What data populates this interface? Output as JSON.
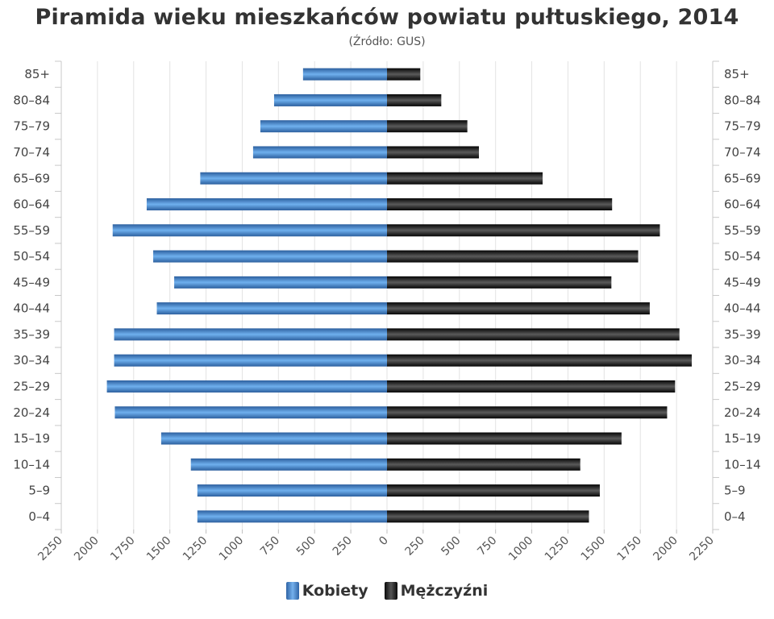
{
  "chart_data": {
    "type": "bar",
    "title": "Piramida wieku mieszkańców powiatu pułtuskiego, 2014",
    "subtitle": "(Źródło: GUS)",
    "orientation": "horizontal-population-pyramid",
    "categories": [
      "85+",
      "80-84",
      "75-79",
      "70-74",
      "65-69",
      "60-64",
      "55-59",
      "50-54",
      "45-49",
      "40-44",
      "35-39",
      "30-34",
      "25-29",
      "20-24",
      "15-19",
      "10-14",
      "5-9",
      "0-4"
    ],
    "category_labels": [
      "85+",
      "80–84",
      "75–79",
      "70–74",
      "65–69",
      "60–64",
      "55–59",
      "50–54",
      "45–49",
      "40–44",
      "35–39",
      "30–34",
      "25–29",
      "20–24",
      "15–19",
      "10–14",
      "5–9",
      "0–4"
    ],
    "series": [
      {
        "name": "Kobiety",
        "side": "left",
        "color": "#4a87c9",
        "values": [
          580,
          780,
          875,
          925,
          1290,
          1660,
          1895,
          1615,
          1470,
          1590,
          1885,
          1885,
          1935,
          1880,
          1560,
          1355,
          1310,
          1310
        ]
      },
      {
        "name": "Mężczyźni",
        "side": "right",
        "color": "#1a1a1a",
        "values": [
          230,
          375,
          555,
          635,
          1075,
          1555,
          1885,
          1735,
          1550,
          1815,
          2020,
          2105,
          1990,
          1935,
          1620,
          1335,
          1470,
          1395
        ]
      }
    ],
    "xlim": [
      -2250,
      2250
    ],
    "xticks": [
      -2250,
      -2000,
      -1750,
      -1500,
      -1250,
      -1000,
      -750,
      -500,
      -250,
      0,
      250,
      500,
      750,
      1000,
      1250,
      1500,
      1750,
      2000,
      2250
    ],
    "xtick_labels": [
      "2250",
      "2000",
      "1750",
      "1500",
      "1250",
      "1000",
      "750",
      "500",
      "250",
      "0",
      "250",
      "500",
      "750",
      "1000",
      "1250",
      "1500",
      "1750",
      "2000",
      "2250"
    ],
    "grid": true,
    "legend_position": "bottom-center"
  }
}
